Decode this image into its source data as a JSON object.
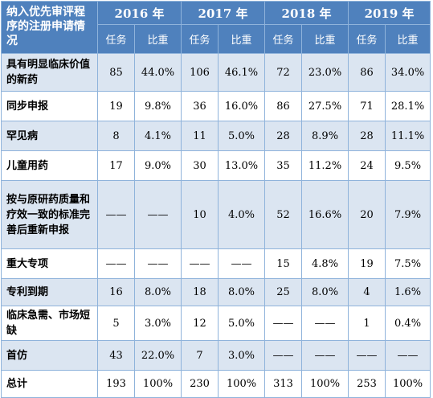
{
  "header": {
    "corner": "纳入优先审评程序的注册申请情况",
    "years": [
      "2016 年",
      "2017 年",
      "2018 年",
      "2019 年"
    ],
    "sub": [
      "任务",
      "比重"
    ]
  },
  "rows": [
    {
      "label": "具有明显临床价值的新药",
      "cells": [
        "85",
        "44.0%",
        "106",
        "46.1%",
        "72",
        "23.0%",
        "86",
        "34.0%"
      ]
    },
    {
      "label": "同步申报",
      "cells": [
        "19",
        "9.8%",
        "36",
        "16.0%",
        "86",
        "27.5%",
        "71",
        "28.1%"
      ]
    },
    {
      "label": "罕见病",
      "cells": [
        "8",
        "4.1%",
        "11",
        "5.0%",
        "28",
        "8.9%",
        "28",
        "11.1%"
      ]
    },
    {
      "label": "儿童用药",
      "cells": [
        "17",
        "9.0%",
        "30",
        "13.0%",
        "35",
        "11.2%",
        "24",
        "9.5%"
      ]
    },
    {
      "label": "按与原研药质量和疗效一致的标准完善后重新申报",
      "cells": [
        "——",
        "——",
        "10",
        "4.0%",
        "52",
        "16.6%",
        "20",
        "7.9%"
      ]
    },
    {
      "label": "重大专项",
      "cells": [
        "——",
        "——",
        "——",
        "——",
        "15",
        "4.8%",
        "19",
        "7.5%"
      ]
    },
    {
      "label": "专利到期",
      "cells": [
        "16",
        "8.0%",
        "18",
        "8.0%",
        "25",
        "8.0%",
        "4",
        "1.6%"
      ]
    },
    {
      "label": "临床急需、市场短缺",
      "cells": [
        "5",
        "3.0%",
        "12",
        "5.0%",
        "——",
        "——",
        "1",
        "0.4%"
      ]
    },
    {
      "label": "首仿",
      "cells": [
        "43",
        "22.0%",
        "7",
        "3.0%",
        "——",
        "——",
        "——",
        "——"
      ]
    },
    {
      "label": "总计",
      "cells": [
        "193",
        "100%",
        "230",
        "100%",
        "313",
        "100%",
        "253",
        "100%"
      ]
    }
  ]
}
